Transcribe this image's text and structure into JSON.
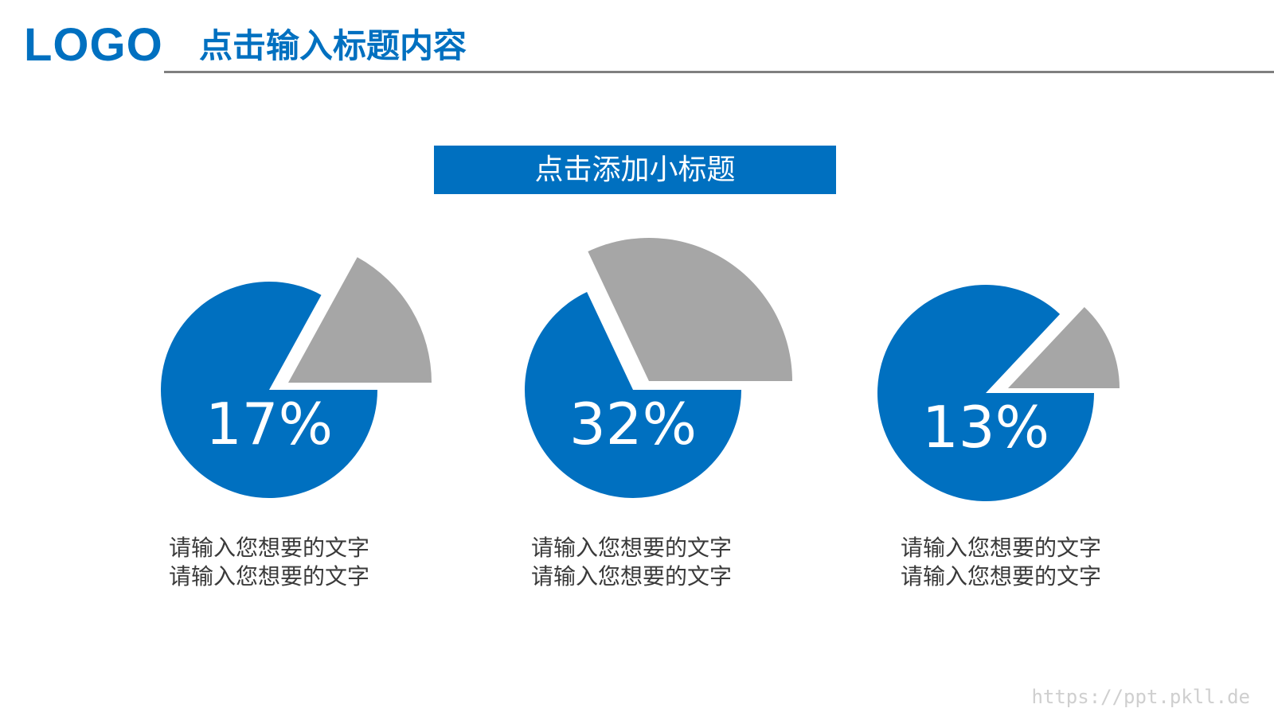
{
  "header": {
    "logo": "LOGO",
    "title": "点击输入标题内容"
  },
  "subtitle": "点击添加小标题",
  "colors": {
    "brand": "#0070C0",
    "slice": "#A6A6A6",
    "rule": "#7F7F7F",
    "caption": "#3A3A3A"
  },
  "chart_data": [
    {
      "type": "pie",
      "title": "",
      "values": [
        17,
        83
      ],
      "label": "17%",
      "exploded_slice": 0,
      "caption": [
        "请输入您想要的文字",
        "请输入您想要的文字"
      ]
    },
    {
      "type": "pie",
      "title": "",
      "values": [
        32,
        68
      ],
      "label": "32%",
      "exploded_slice": 0,
      "caption": [
        "请输入您想要的文字",
        "请输入您想要的文字"
      ]
    },
    {
      "type": "pie",
      "title": "",
      "values": [
        13,
        87
      ],
      "label": "13%",
      "exploded_slice": 0,
      "caption": [
        "请输入您想要的文字",
        "请输入您想要的文字"
      ]
    }
  ],
  "watermark": "https://ppt.pkll.de"
}
